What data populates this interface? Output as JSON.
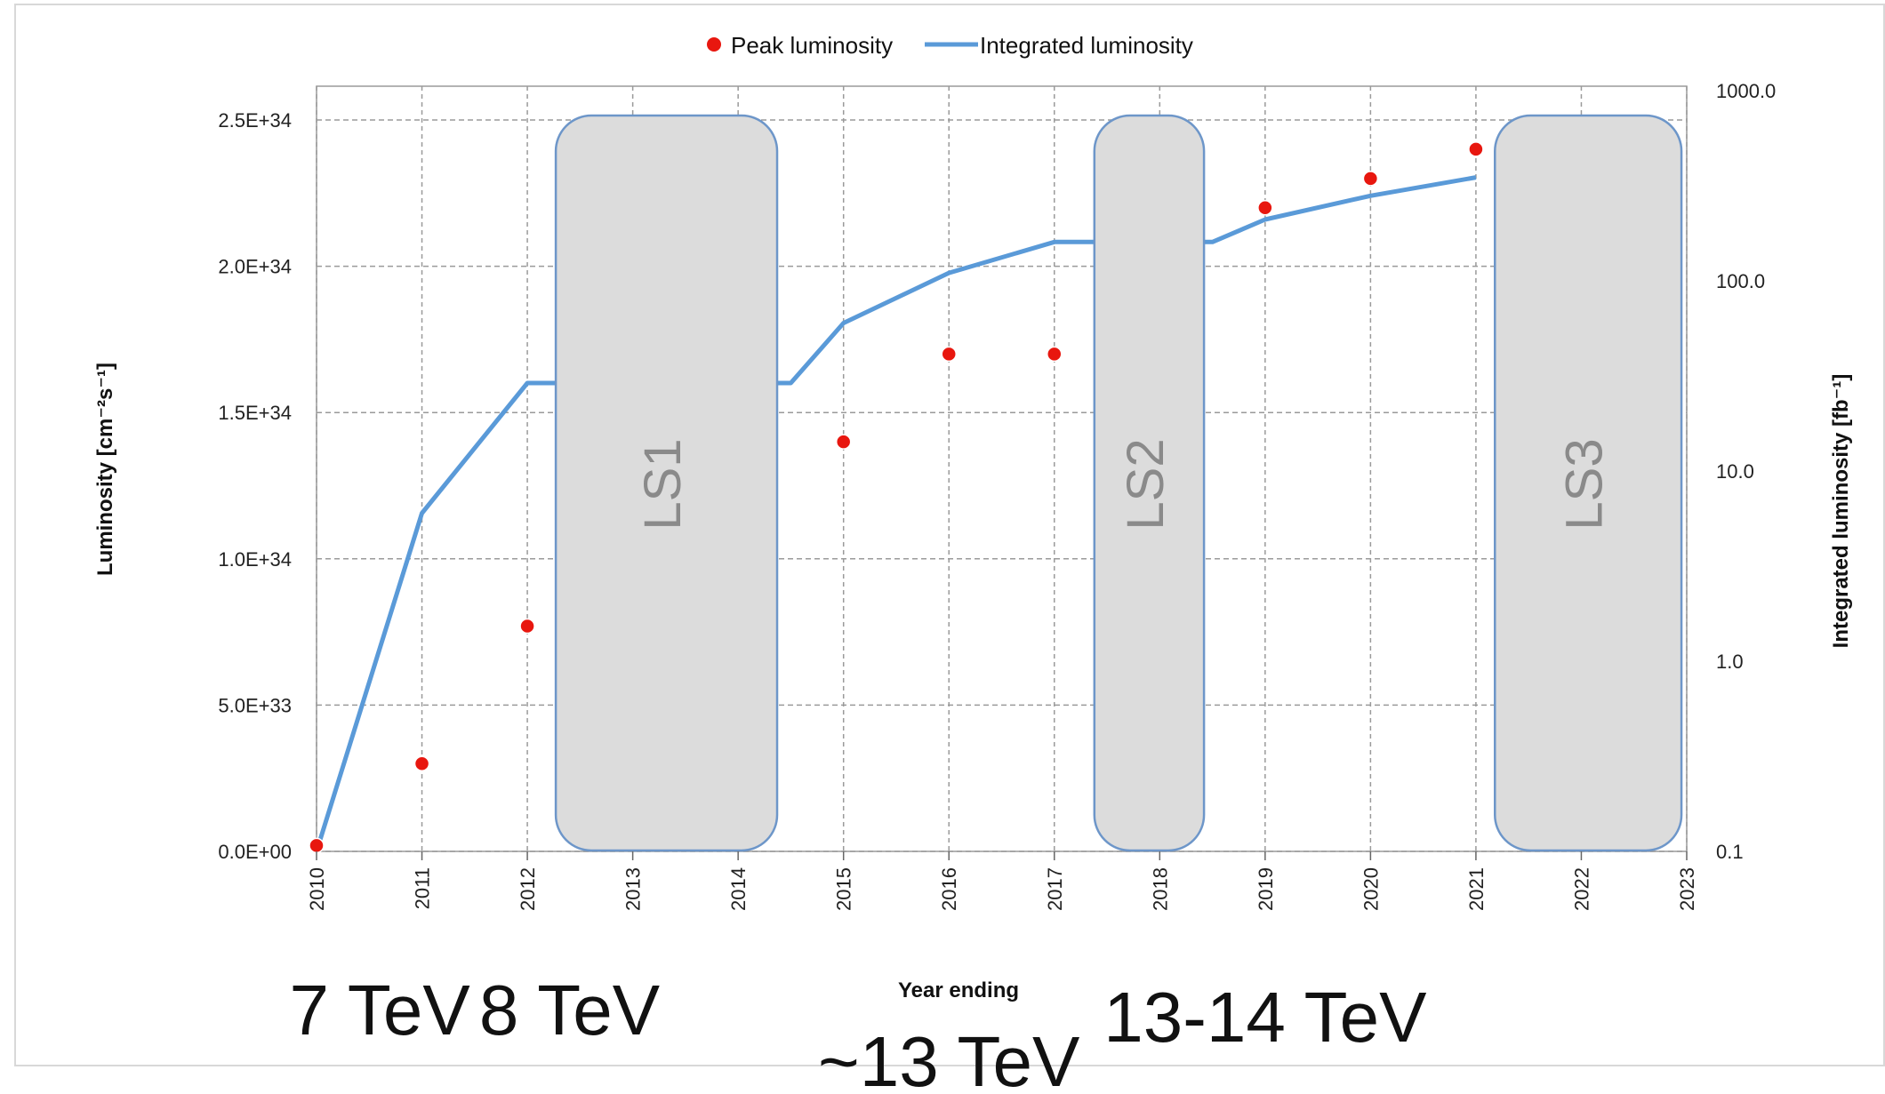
{
  "chart_data": {
    "type": "line",
    "xlabel": "Year ending",
    "ylabel": "Luminosity [cm⁻²s⁻¹]",
    "y2label": "Integrated luminosity [fb⁻¹]",
    "xlim": [
      2010,
      2023
    ],
    "x_ticks": [
      "2010",
      "2011",
      "2012",
      "2013",
      "2014",
      "2015",
      "2016",
      "2017",
      "2018",
      "2019",
      "2020",
      "2021",
      "2022",
      "2023"
    ],
    "ylim": [
      0,
      2.5e+34
    ],
    "y_ticks": [
      "0.0E+00",
      "5.0E+33",
      "1.0E+34",
      "1.5E+34",
      "2.0E+34",
      "2.5E+34"
    ],
    "y_tick_values": [
      0,
      5e+33,
      1e+34,
      1.5e+34,
      2e+34,
      2.5e+34
    ],
    "y2lim": [
      0.1,
      1000
    ],
    "y2_scale": "log",
    "y2_ticks": [
      "0.1",
      "1.0",
      "10.0",
      "100.0",
      "1000.0"
    ],
    "y2_tick_values": [
      0.1,
      1,
      10,
      100,
      1000
    ],
    "grid": true,
    "legend_position": "top-center",
    "series": [
      {
        "name": "Peak luminosity",
        "type": "scatter",
        "axis": "left",
        "color": "#e8170f",
        "points": [
          {
            "x": 2010,
            "y": 2e+32
          },
          {
            "x": 2011,
            "y": 3e+33
          },
          {
            "x": 2012,
            "y": 7.7e+33
          },
          {
            "x": 2015,
            "y": 1.4e+34
          },
          {
            "x": 2016,
            "y": 1.7e+34
          },
          {
            "x": 2017,
            "y": 1.7e+34
          },
          {
            "x": 2019,
            "y": 2.2e+34
          },
          {
            "x": 2020,
            "y": 2.3e+34
          },
          {
            "x": 2021,
            "y": 2.4e+34
          }
        ]
      },
      {
        "name": "Integrated luminosity",
        "type": "line",
        "axis": "right",
        "color": "#5a9ad8",
        "points": [
          {
            "x": 2010,
            "y": 0.1
          },
          {
            "x": 2011,
            "y": 6
          },
          {
            "x": 2012,
            "y": 29
          },
          {
            "x": 2014.5,
            "y": 29
          },
          {
            "x": 2015,
            "y": 60
          },
          {
            "x": 2016,
            "y": 110
          },
          {
            "x": 2017,
            "y": 160
          },
          {
            "x": 2018.5,
            "y": 160
          },
          {
            "x": 2019,
            "y": 210
          },
          {
            "x": 2020,
            "y": 280
          },
          {
            "x": 2021,
            "y": 350
          }
        ]
      }
    ],
    "shutdowns": [
      {
        "label": "LS1",
        "x_start": 2012.27,
        "x_end": 2014.37
      },
      {
        "label": "LS2",
        "x_start": 2017.38,
        "x_end": 2018.42
      },
      {
        "label": "LS3",
        "x_start": 2021.18,
        "x_end": 2022.95
      }
    ],
    "energy_annotations": [
      {
        "text": "7 TeV",
        "x": 2010.6
      },
      {
        "text": "8 TeV",
        "x": 2012.4
      },
      {
        "text": "~13 TeV",
        "x": 2016.0
      },
      {
        "text": "13-14 TeV",
        "x": 2019.0
      }
    ]
  }
}
